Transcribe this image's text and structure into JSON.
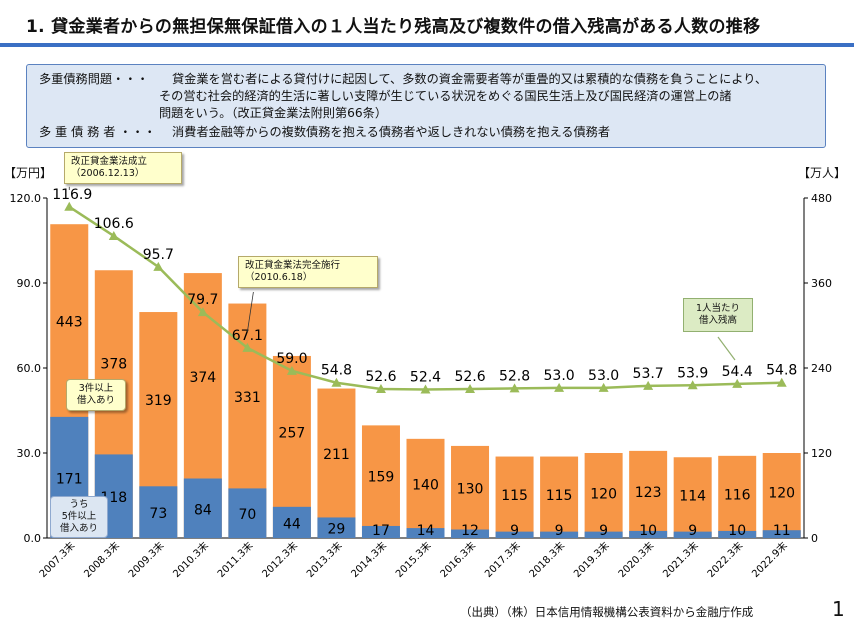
{
  "title": "1. 貸金業者からの無担保無保証借入の１人当たり残高及び複数件の借入残高がある人数の推移",
  "definitions": [
    {
      "term": "多重債務問題・・・",
      "lines": [
        "貸金業を営む者による貸付けに起因して、多数の資金需要者等が重畳的又は累積的な債務を負うことにより、",
        "その営む社会的経済的生活に著しい支障が生じている状況をめぐる国民生活上及び国民経済の運営上の諸",
        "問題をいう。（改正貸金業法附則第66条）"
      ]
    },
    {
      "term": "多 重 債 務 者 ・・・",
      "lines": [
        "消費者金融等からの複数債務を抱える債務者や返しきれない債務を抱える債務者"
      ]
    }
  ],
  "units": {
    "left": "【万円】",
    "right": "【万人】"
  },
  "annotations": {
    "reform_enacted": {
      "label": "改正貸金業法成立",
      "date": "（2006.12.13）"
    },
    "reform_full": {
      "label": "改正貸金業法完全施行",
      "date": "（2010.6.18）"
    },
    "balance_label": [
      "1人当たり",
      "借入残高"
    ],
    "three_plus": [
      "3件以上",
      "借入あり"
    ],
    "five_plus": [
      "うち",
      "5件以上",
      "借入あり"
    ]
  },
  "source": "（出典）（株）日本信用情報機構公表資料から金融庁作成",
  "page_number": "1",
  "colors": {
    "three_plus": "#f79646",
    "five_plus": "#4f81bd",
    "line": "#9bbb59",
    "rule": "#3a6fc4"
  },
  "chart_data": {
    "type": "bar+line",
    "categories": [
      "2007.3末",
      "2008.3末",
      "2009.3末",
      "2010.3末",
      "2011.3末",
      "2012.3末",
      "2013.3末",
      "2014.3末",
      "2015.3末",
      "2016.3末",
      "2017.3末",
      "2018.3末",
      "2019.3末",
      "2020.3末",
      "2021.3末",
      "2022.3末",
      "2022.9末"
    ],
    "series": [
      {
        "name": "3件以上借入あり",
        "axis": "right",
        "type": "bar",
        "values": [
          443,
          378,
          319,
          374,
          331,
          257,
          211,
          159,
          140,
          130,
          115,
          115,
          120,
          123,
          114,
          116,
          120
        ]
      },
      {
        "name": "うち5件以上借入あり",
        "axis": "right",
        "type": "bar",
        "values": [
          171,
          118,
          73,
          84,
          70,
          44,
          29,
          17,
          14,
          12,
          9,
          9,
          9,
          10,
          9,
          10,
          11
        ]
      },
      {
        "name": "1人当たり借入残高",
        "axis": "left",
        "type": "line",
        "values": [
          116.9,
          106.6,
          95.7,
          79.7,
          67.1,
          59.0,
          54.8,
          52.6,
          52.4,
          52.6,
          52.8,
          53.0,
          53.0,
          53.7,
          53.9,
          54.4,
          54.8
        ]
      }
    ],
    "yaxis_left": {
      "ylim": [
        0,
        120
      ],
      "ticks": [
        "0.0",
        "30.0",
        "60.0",
        "90.0",
        "120.0"
      ],
      "unit": "【万円】"
    },
    "yaxis_right": {
      "ylim": [
        0,
        480
      ],
      "ticks": [
        "0",
        "120",
        "240",
        "360",
        "480"
      ],
      "unit": "【万人】"
    }
  }
}
